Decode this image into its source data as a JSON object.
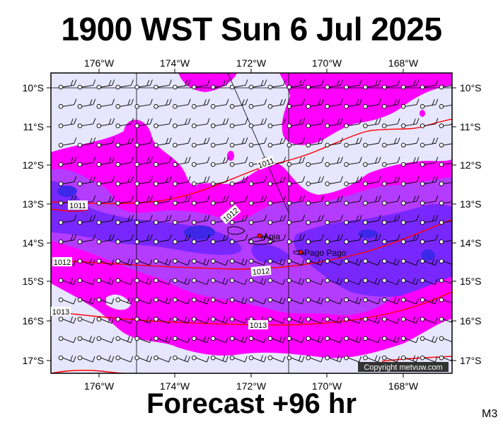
{
  "title": "1900 WST Sun 6 Jul 2025",
  "footer": "Forecast +96 hr",
  "model": "M3",
  "copyright": "Copyright metvuw.com",
  "map": {
    "lon_labels": [
      "176°W",
      "174°W",
      "172°W",
      "170°W",
      "168°W"
    ],
    "lat_labels": [
      "10°S",
      "11°S",
      "12°S",
      "13°S",
      "14°S",
      "15°S",
      "16°S",
      "17°S"
    ],
    "places": [
      {
        "name": "Apia"
      },
      {
        "name": "Pago Pago"
      }
    ],
    "isobars": [
      {
        "label": "1011"
      },
      {
        "label": "1011"
      },
      {
        "label": "1012"
      },
      {
        "label": "1012"
      },
      {
        "label": "1012"
      },
      {
        "label": "1013"
      },
      {
        "label": "1013"
      }
    ],
    "colors": {
      "background": "#e6e6ff",
      "rain_light": "#ff00ff",
      "rain_medium": "#b43cff",
      "rain_heavy": "#7828ff",
      "rain_extreme": "#3c28e6",
      "isobar": "#ff0000"
    }
  }
}
